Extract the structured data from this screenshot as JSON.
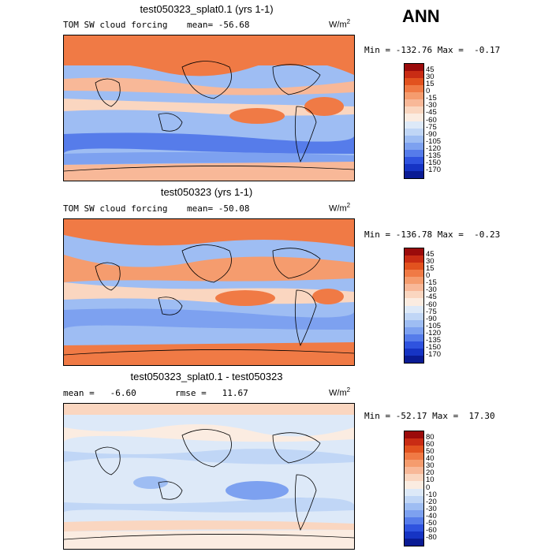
{
  "season": "ANN",
  "panel1": {
    "title": "test050323_splat0.1 (yrs 1-1)",
    "field": "TOM SW cloud forcing",
    "mean_label": "mean= -56.68",
    "units_base": "W/m",
    "units_exp": "2",
    "minmax": "Min = -132.76 Max =  -0.17",
    "levels": [
      "45",
      "30",
      "15",
      "0",
      "-15",
      "-30",
      "-45",
      "-60",
      "-75",
      "-90",
      "-105",
      "-120",
      "-135",
      "-150",
      "-170"
    ],
    "colors": [
      "#9b0b0b",
      "#c92c14",
      "#e2521f",
      "#f07a45",
      "#f59c6e",
      "#f8b898",
      "#fad6c0",
      "#fbece1",
      "#dde9f8",
      "#c0d6f6",
      "#9ebdf3",
      "#7da1f0",
      "#567cea",
      "#2f53df",
      "#1634c4",
      "#0a1b94"
    ]
  },
  "panel2": {
    "title": "test050323 (yrs 1-1)",
    "field": "TOM SW cloud forcing",
    "mean_label": "mean= -50.08",
    "units_base": "W/m",
    "units_exp": "2",
    "minmax": "Min = -136.78 Max =  -0.23",
    "levels": [
      "45",
      "30",
      "15",
      "0",
      "-15",
      "-30",
      "-45",
      "-60",
      "-75",
      "-90",
      "-105",
      "-120",
      "-135",
      "-150",
      "-170"
    ],
    "colors": [
      "#9b0b0b",
      "#c92c14",
      "#e2521f",
      "#f07a45",
      "#f59c6e",
      "#f8b898",
      "#fad6c0",
      "#fbece1",
      "#dde9f8",
      "#c0d6f6",
      "#9ebdf3",
      "#7da1f0",
      "#567cea",
      "#2f53df",
      "#1634c4",
      "#0a1b94"
    ]
  },
  "panel3": {
    "title": "test050323_splat0.1 - test050323",
    "mean_label": "mean =   -6.60",
    "rmse_label": "rmse =   11.67",
    "units_base": "W/m",
    "units_exp": "2",
    "minmax": "Min = -52.17 Max =  17.30",
    "levels": [
      "80",
      "60",
      "50",
      "40",
      "30",
      "20",
      "10",
      "0",
      "-10",
      "-20",
      "-30",
      "-40",
      "-50",
      "-60",
      "-80"
    ],
    "colors": [
      "#9b0b0b",
      "#c92c14",
      "#e2521f",
      "#f07a45",
      "#f59c6e",
      "#f8b898",
      "#fad6c0",
      "#fbece1",
      "#dde9f8",
      "#c0d6f6",
      "#9ebdf3",
      "#7da1f0",
      "#567cea",
      "#2f53df",
      "#1634c4",
      "#0a1b94"
    ]
  }
}
